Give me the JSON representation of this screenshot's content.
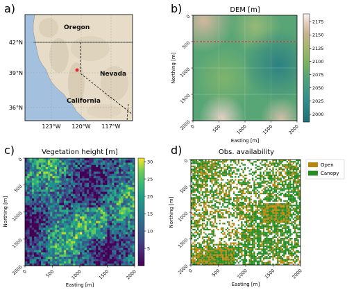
{
  "panels": {
    "a": {
      "letter": "a)",
      "lat_ticks": [
        "42°N",
        "39°N",
        "36°N"
      ],
      "lon_ticks": [
        "123°W",
        "120°W",
        "117°W"
      ],
      "states": [
        "Oregon",
        "Nevada",
        "California"
      ]
    },
    "b": {
      "letter": "b)",
      "title": "DEM [m]"
    },
    "c": {
      "letter": "c)",
      "title": "Vegetation height [m]"
    },
    "d": {
      "letter": "d)",
      "title": "Obs. availability"
    }
  },
  "colors": {
    "ocean": "#a3c0de",
    "land": "#e6dcc8",
    "site": "#e3262d",
    "transect": "#e3262d",
    "open": "#b8860b",
    "canopy": "#228b22"
  },
  "chart_data": [
    {
      "type": "heatmap",
      "title": "DEM [m]",
      "xlabel": "Easting [m]",
      "ylabel": "Northing [m]",
      "x_ticks": [
        "0",
        "500",
        "1000",
        "1500",
        "2000"
      ],
      "y_ticks": [
        "0",
        "500",
        "1000",
        "1500",
        "2000"
      ],
      "xlim": [
        0,
        2000
      ],
      "ylim": [
        2000,
        0
      ],
      "colorbar": {
        "ticks": [
          "2175",
          "2150",
          "2125",
          "2100",
          "2075",
          "2050",
          "2025",
          "2000"
        ],
        "range": [
          1985,
          2190
        ],
        "colormap": "gist_earth_r"
      },
      "transect_northing": 500,
      "grid": true
    },
    {
      "type": "heatmap",
      "title": "Vegetation height [m]",
      "xlabel": "Easting [m]",
      "ylabel": "Northing [m]",
      "x_ticks": [
        "0",
        "500",
        "1000",
        "1500",
        "2000"
      ],
      "y_ticks": [
        "0",
        "500",
        "1000",
        "1500",
        "2000"
      ],
      "xlim": [
        0,
        2000
      ],
      "ylim": [
        2000,
        0
      ],
      "colorbar": {
        "ticks": [
          "30",
          "25",
          "20",
          "15",
          "10",
          "5"
        ],
        "range": [
          0,
          31
        ],
        "colormap": "viridis"
      }
    },
    {
      "type": "heatmap",
      "title": "Obs. availability",
      "xlabel": "Easting [m]",
      "ylabel": "Northing [m]",
      "x_ticks": [
        "0",
        "500",
        "1000",
        "1500",
        "2000"
      ],
      "y_ticks": [
        "0",
        "500",
        "1000",
        "1500",
        "2000"
      ],
      "xlim": [
        0,
        2000
      ],
      "ylim": [
        2000,
        0
      ],
      "legend": {
        "entries": [
          "Open",
          "Canopy"
        ],
        "placement": "outside-right"
      }
    }
  ]
}
